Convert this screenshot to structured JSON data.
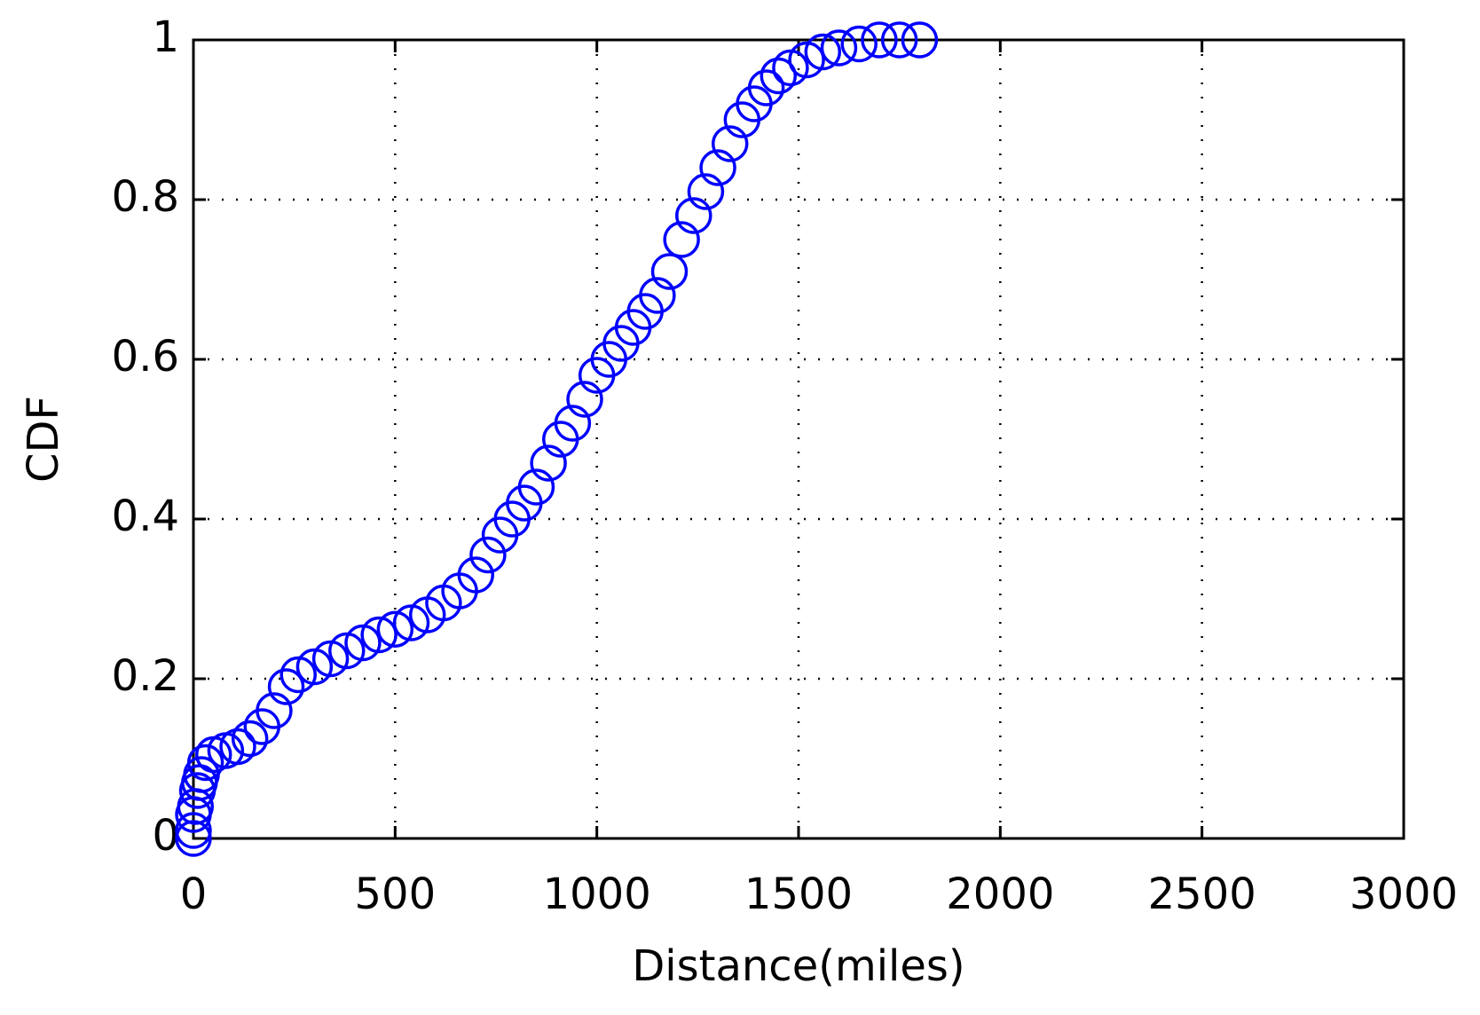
{
  "chart_data": {
    "type": "scatter",
    "xlabel": "Distance(miles)",
    "ylabel": "CDF",
    "xlim": [
      0,
      3000
    ],
    "ylim": [
      0,
      1
    ],
    "xticks": [
      0,
      500,
      1000,
      1500,
      2000,
      2500,
      3000
    ],
    "yticks": [
      0,
      0.2,
      0.4,
      0.6,
      0.8,
      1
    ],
    "grid": true,
    "series": [
      {
        "color": "#0000ff",
        "x": [
          0,
          0,
          0,
          5,
          10,
          15,
          20,
          30,
          50,
          80,
          110,
          140,
          170,
          200,
          230,
          260,
          300,
          340,
          380,
          420,
          460,
          500,
          540,
          580,
          620,
          660,
          700,
          730,
          760,
          790,
          820,
          850,
          880,
          910,
          940,
          970,
          1000,
          1030,
          1060,
          1090,
          1120,
          1150,
          1180,
          1210,
          1240,
          1270,
          1300,
          1330,
          1360,
          1390,
          1420,
          1450,
          1480,
          1520,
          1560,
          1600,
          1650,
          1700,
          1750,
          1800
        ],
        "values": [
          0,
          0.01,
          0.03,
          0.04,
          0.06,
          0.07,
          0.08,
          0.095,
          0.105,
          0.11,
          0.115,
          0.125,
          0.14,
          0.16,
          0.19,
          0.205,
          0.215,
          0.225,
          0.235,
          0.245,
          0.255,
          0.262,
          0.27,
          0.28,
          0.295,
          0.31,
          0.33,
          0.355,
          0.38,
          0.4,
          0.42,
          0.44,
          0.47,
          0.5,
          0.52,
          0.55,
          0.58,
          0.6,
          0.62,
          0.64,
          0.66,
          0.68,
          0.71,
          0.75,
          0.78,
          0.81,
          0.84,
          0.87,
          0.9,
          0.92,
          0.94,
          0.955,
          0.965,
          0.975,
          0.985,
          0.99,
          0.995,
          1,
          1,
          1
        ]
      }
    ]
  }
}
